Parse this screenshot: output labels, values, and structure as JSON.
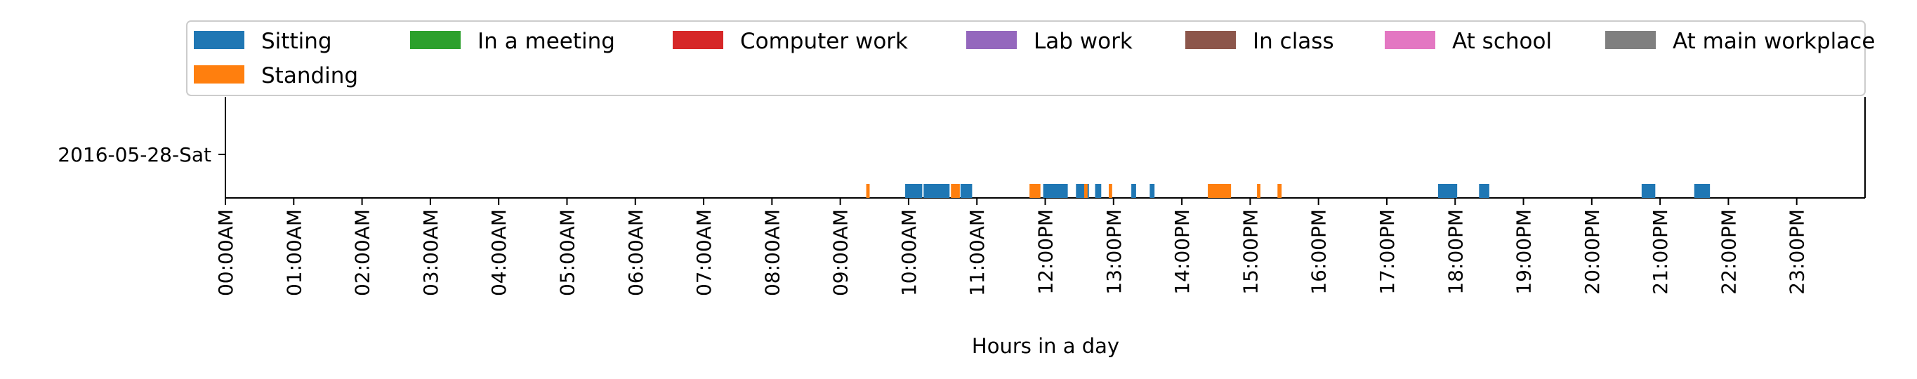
{
  "chart_data": {
    "type": "timeline",
    "xlabel": "Hours in a day",
    "xlim": [
      0,
      24
    ],
    "x_tick_labels": [
      "00:00AM",
      "01:00AM",
      "02:00AM",
      "03:00AM",
      "04:00AM",
      "05:00AM",
      "06:00AM",
      "07:00AM",
      "08:00AM",
      "09:00AM",
      "10:00AM",
      "11:00AM",
      "12:00PM",
      "13:00PM",
      "14:00PM",
      "15:00PM",
      "16:00PM",
      "17:00PM",
      "18:00PM",
      "19:00PM",
      "20:00PM",
      "21:00PM",
      "22:00PM",
      "23:00PM"
    ],
    "y_tick_labels": [
      "2016-05-28-Sat"
    ],
    "legend_position": "top",
    "legend": [
      {
        "name": "Sitting",
        "color": "#1f77b4"
      },
      {
        "name": "In a meeting",
        "color": "#2ca02c"
      },
      {
        "name": "Computer work",
        "color": "#d62728"
      },
      {
        "name": "Lab work",
        "color": "#9467bd"
      },
      {
        "name": "In class",
        "color": "#8c564b"
      },
      {
        "name": "At school",
        "color": "#e377c2"
      },
      {
        "name": "At main workplace",
        "color": "#7f7f7f"
      },
      {
        "name": "Standing",
        "color": "#ff7f0e"
      }
    ],
    "series": [
      {
        "name": "Sitting",
        "color": "#1f77b4",
        "intervals": [
          [
            9.95,
            10.2
          ],
          [
            10.22,
            10.6
          ],
          [
            10.76,
            10.93
          ],
          [
            11.97,
            12.33
          ],
          [
            12.45,
            12.64
          ],
          [
            12.73,
            12.82
          ],
          [
            13.26,
            13.33
          ],
          [
            13.53,
            13.6
          ],
          [
            17.75,
            18.03
          ],
          [
            18.35,
            18.5
          ],
          [
            20.73,
            20.93
          ],
          [
            21.5,
            21.73
          ]
        ]
      },
      {
        "name": "Standing",
        "color": "#ff7f0e",
        "intervals": [
          [
            9.38,
            9.43
          ],
          [
            10.62,
            10.75
          ],
          [
            11.77,
            11.93
          ],
          [
            12.57,
            12.62
          ],
          [
            12.93,
            12.98
          ],
          [
            14.38,
            14.72
          ],
          [
            15.1,
            15.15
          ],
          [
            15.4,
            15.46
          ]
        ]
      }
    ]
  }
}
